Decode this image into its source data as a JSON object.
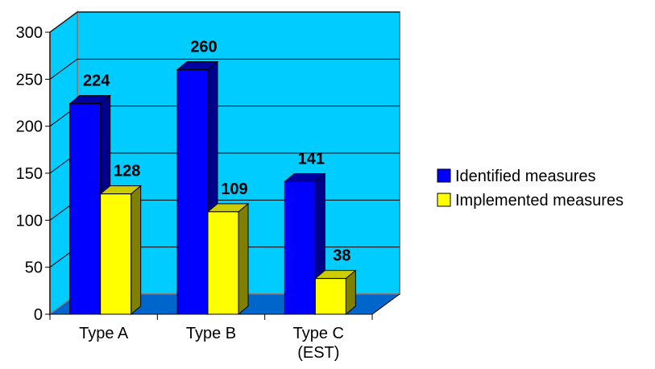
{
  "chart_data": {
    "type": "bar",
    "categories": [
      "Type A",
      "Type B",
      "Type C\n(EST)"
    ],
    "series": [
      {
        "name": "Identified measures",
        "values": [
          224,
          260,
          141
        ],
        "color": "#0000ff",
        "side_color": "#00008b",
        "top_color": "#0000a0"
      },
      {
        "name": "Implemented measures",
        "values": [
          128,
          109,
          38
        ],
        "color": "#ffff00",
        "side_color": "#808000",
        "top_color": "#cccc00"
      }
    ],
    "ylim": [
      0,
      300
    ],
    "yticks": [
      0,
      50,
      100,
      150,
      200,
      250,
      300
    ],
    "title": "",
    "xlabel": "",
    "ylabel": "",
    "grid": true,
    "three_d": true,
    "legend_position": "right",
    "colors": {
      "back_wall": "#00ccff",
      "floor": "#0066cc",
      "grid_line": "#000000",
      "wall_border": "#808080"
    }
  }
}
